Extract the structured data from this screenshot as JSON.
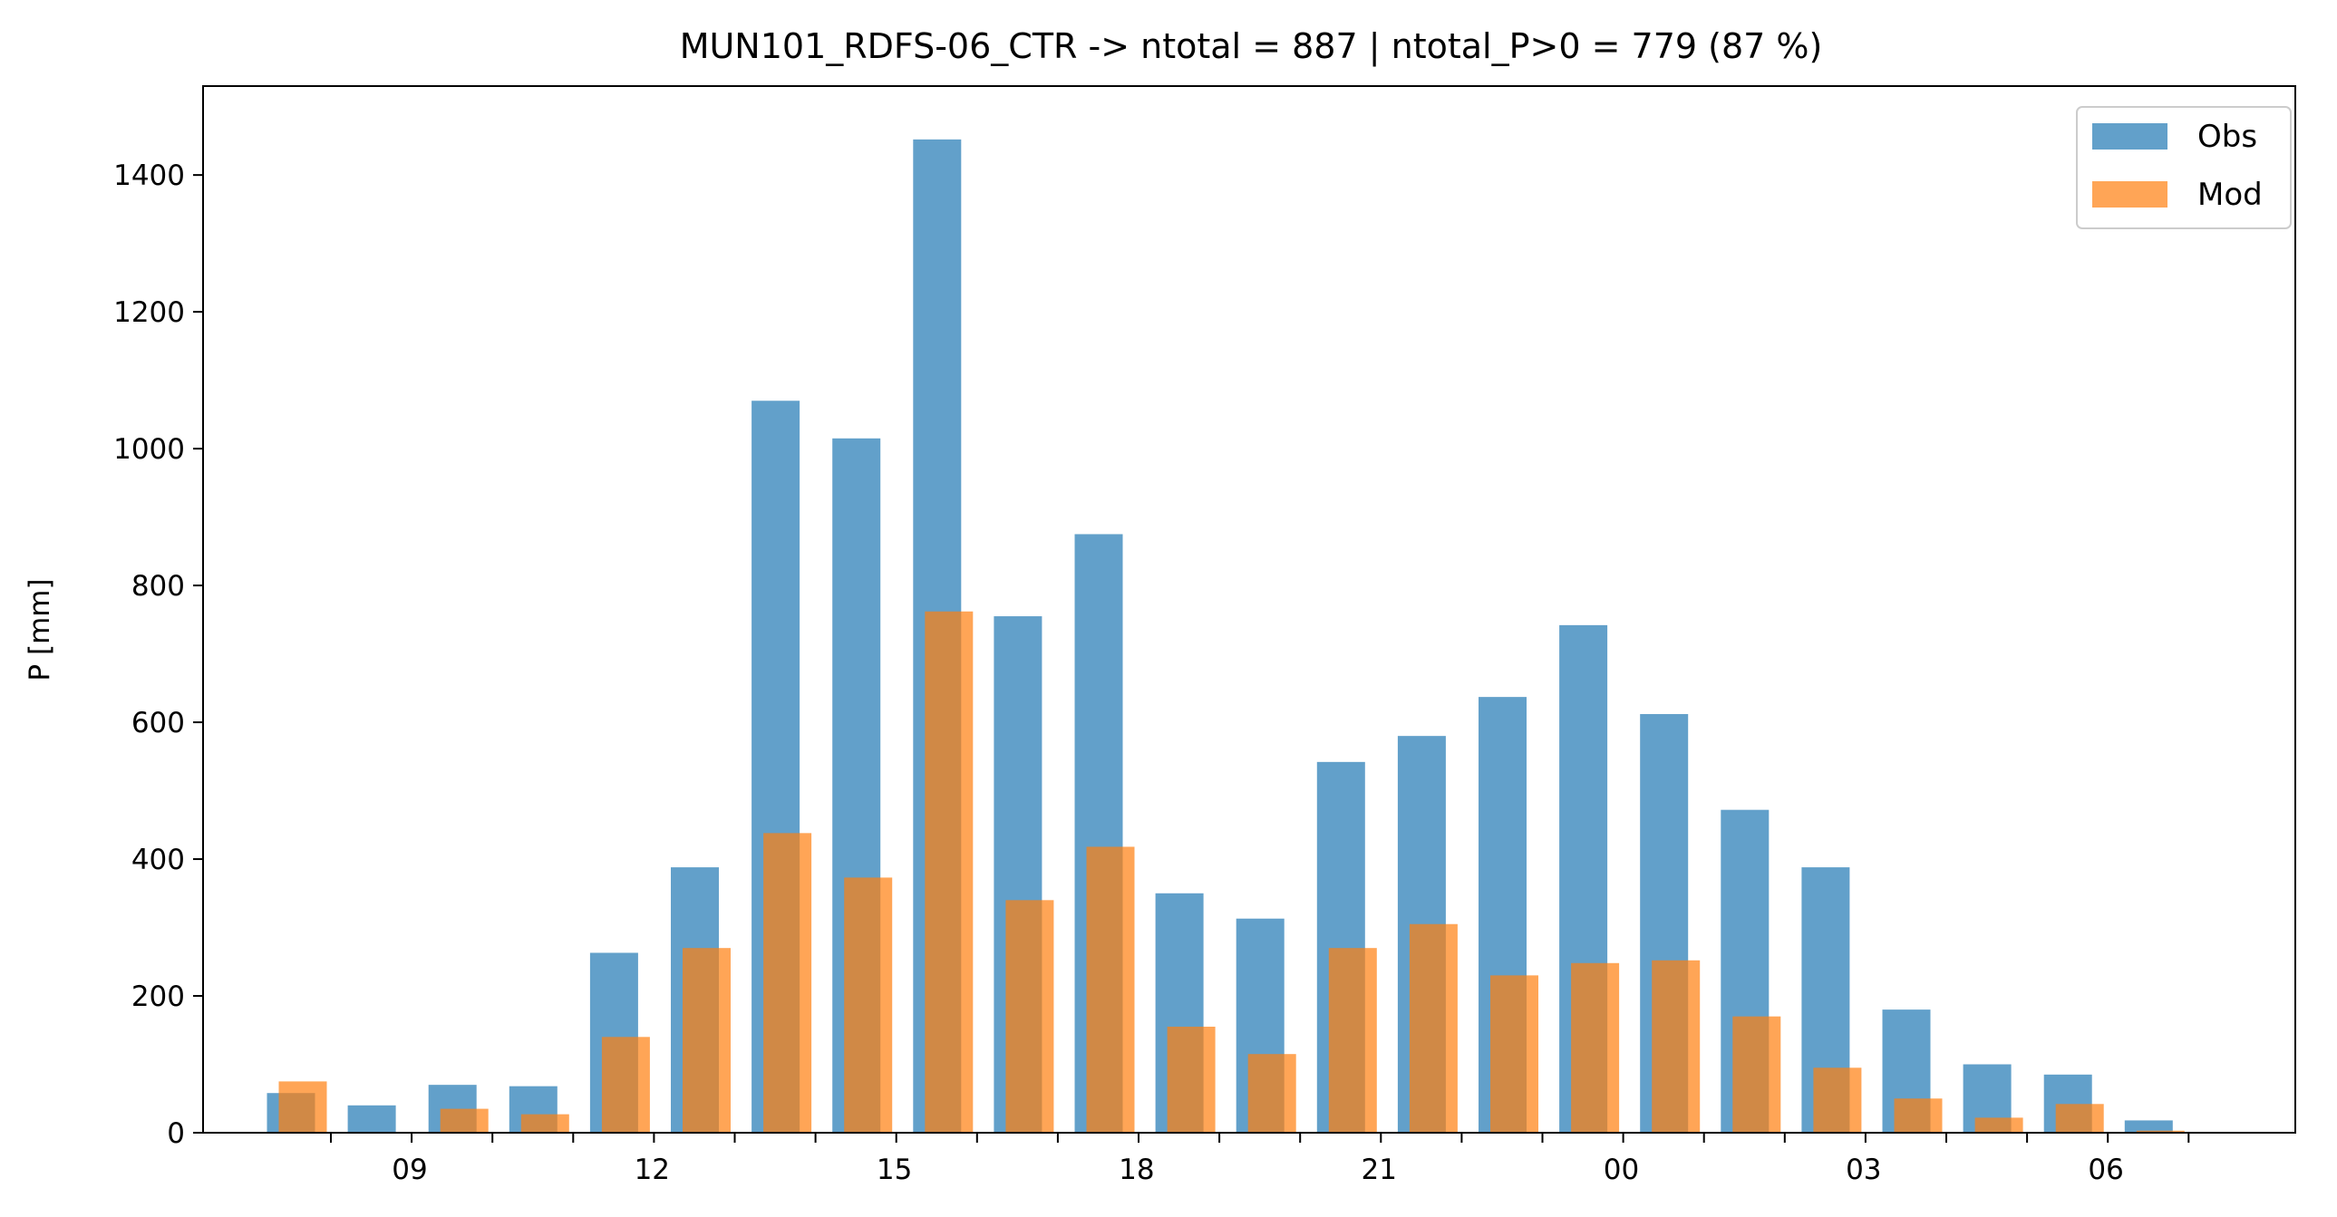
{
  "chart_data": {
    "type": "bar",
    "title": "MUN101_RDFS-06_CTR -> ntotal = 887 | ntotal_P>0 = 779 (87 %)",
    "xlabel": "",
    "ylabel": "P [mm]",
    "ylim": [
      0,
      1530
    ],
    "yticks": [
      0,
      200,
      400,
      600,
      800,
      1000,
      1200,
      1400
    ],
    "x_hours": [
      8,
      9,
      10,
      11,
      12,
      13,
      14,
      15,
      16,
      17,
      18,
      19,
      20,
      21,
      22,
      23,
      0,
      1,
      2,
      3,
      4,
      5,
      6,
      7
    ],
    "xtick_labels": [
      "09",
      "12",
      "15",
      "18",
      "21",
      "00",
      "03",
      "06"
    ],
    "legend_position": "upper-right",
    "grid": false,
    "series": [
      {
        "name": "Obs",
        "color": "#1f77b4",
        "values": [
          58,
          40,
          70,
          68,
          263,
          388,
          1070,
          1015,
          1452,
          755,
          875,
          350,
          313,
          542,
          580,
          637,
          742,
          612,
          472,
          388,
          180,
          100,
          85,
          18
        ]
      },
      {
        "name": "Mod",
        "color": "#ff7f0e",
        "values": [
          75,
          0,
          35,
          27,
          140,
          270,
          438,
          373,
          762,
          340,
          418,
          155,
          115,
          270,
          305,
          230,
          248,
          252,
          170,
          95,
          50,
          22,
          42,
          3
        ]
      }
    ]
  }
}
